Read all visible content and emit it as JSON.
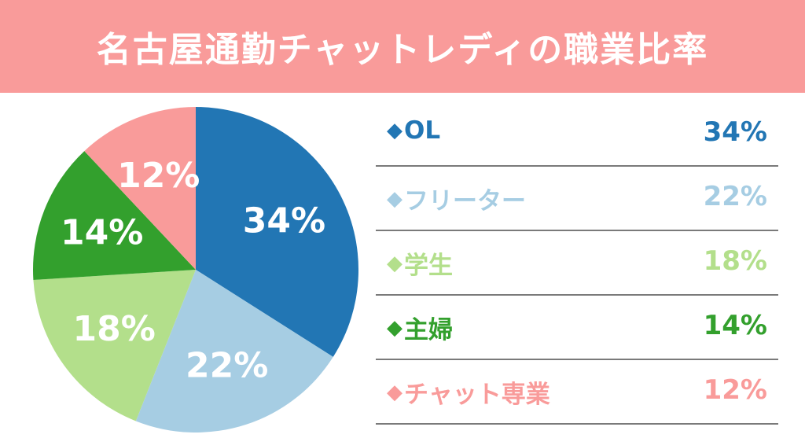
{
  "title": "名古屋通勤チャットレディの職業比率",
  "colors": {
    "header_bg": "#f99b9a",
    "OL": "#2276b4",
    "freeter": "#a6cde3",
    "student": "#b3df8b",
    "housewife": "#33a02d",
    "chat": "#f99b9a"
  },
  "chart_data": {
    "type": "pie",
    "categories": [
      "OL",
      "フリーター",
      "学生",
      "主婦",
      "チャット専業"
    ],
    "values": [
      34,
      22,
      18,
      14,
      12
    ],
    "labels": [
      "34%",
      "22%",
      "18%",
      "14%",
      "12%"
    ],
    "colors": [
      "#2276b4",
      "#a6cde3",
      "#b3df8b",
      "#33a02d",
      "#f99b9a"
    ],
    "legend_position": "right"
  },
  "legend": [
    {
      "marker": "◆",
      "label": "OL",
      "pct": "34%"
    },
    {
      "marker": "◆",
      "label": "フリーター",
      "pct": "22%"
    },
    {
      "marker": "◆",
      "label": "学生",
      "pct": "18%"
    },
    {
      "marker": "◆",
      "label": "主婦",
      "pct": "14%"
    },
    {
      "marker": "◆",
      "label": "チャット専業",
      "pct": "12%"
    }
  ]
}
